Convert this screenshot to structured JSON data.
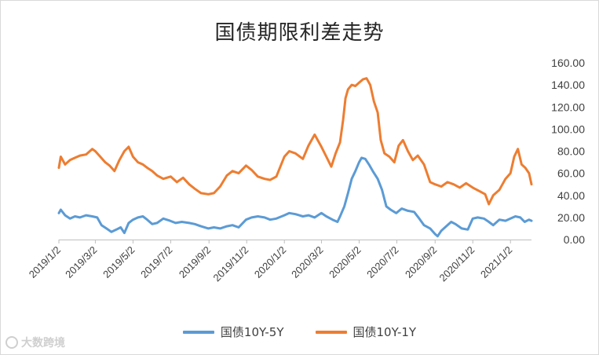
{
  "chart_data": {
    "type": "line",
    "title": "国债期限利差走势",
    "xlabel": "",
    "ylabel": "",
    "ylim": [
      0,
      160
    ],
    "y_ticks": [
      "0.00",
      "20.00",
      "40.00",
      "60.00",
      "80.00",
      "100.00",
      "120.00",
      "140.00",
      "160.00"
    ],
    "x_ticks": [
      "2019/1/2",
      "2019/3/2",
      "2019/5/2",
      "2019/7/2",
      "2019/9/2",
      "2019/11/2",
      "2020/1/2",
      "2020/3/2",
      "2020/5/2",
      "2020/7/2",
      "2020/9/2",
      "2020/11/2",
      "2021/1/2"
    ],
    "x_range": [
      "2019/1/2",
      "2021/2/5"
    ],
    "grid": false,
    "legend_position": "bottom",
    "series": [
      {
        "name": "国债10Y-5Y",
        "color": "#5b9bd5",
        "points": [
          [
            "2019/1/2",
            24
          ],
          [
            "2019/1/5",
            27
          ],
          [
            "2019/1/12",
            22
          ],
          [
            "2019/1/20",
            19
          ],
          [
            "2019/1/28",
            21
          ],
          [
            "2019/2/5",
            20
          ],
          [
            "2019/2/15",
            22
          ],
          [
            "2019/2/25",
            21
          ],
          [
            "2019/3/5",
            20
          ],
          [
            "2019/3/12",
            13
          ],
          [
            "2019/3/20",
            10
          ],
          [
            "2019/3/28",
            7
          ],
          [
            "2019/4/5",
            9
          ],
          [
            "2019/4/12",
            11
          ],
          [
            "2019/4/18",
            6
          ],
          [
            "2019/4/25",
            15
          ],
          [
            "2019/5/2",
            18
          ],
          [
            "2019/5/10",
            20
          ],
          [
            "2019/5/18",
            21
          ],
          [
            "2019/5/25",
            18
          ],
          [
            "2019/6/2",
            14
          ],
          [
            "2019/6/10",
            15
          ],
          [
            "2019/6/20",
            19
          ],
          [
            "2019/7/1",
            17
          ],
          [
            "2019/7/10",
            15
          ],
          [
            "2019/7/20",
            16
          ],
          [
            "2019/8/1",
            15
          ],
          [
            "2019/8/10",
            14
          ],
          [
            "2019/8/20",
            12
          ],
          [
            "2019/9/1",
            10
          ],
          [
            "2019/9/10",
            11
          ],
          [
            "2019/9/20",
            10
          ],
          [
            "2019/10/1",
            12
          ],
          [
            "2019/10/10",
            13
          ],
          [
            "2019/10/20",
            11
          ],
          [
            "2019/11/1",
            18
          ],
          [
            "2019/11/10",
            20
          ],
          [
            "2019/11/20",
            21
          ],
          [
            "2019/12/1",
            20
          ],
          [
            "2019/12/10",
            18
          ],
          [
            "2019/12/20",
            19
          ],
          [
            "2020/1/2",
            22
          ],
          [
            "2020/1/10",
            24
          ],
          [
            "2020/1/20",
            23
          ],
          [
            "2020/2/1",
            21
          ],
          [
            "2020/2/10",
            22
          ],
          [
            "2020/2/20",
            20
          ],
          [
            "2020/3/2",
            24
          ],
          [
            "2020/3/10",
            21
          ],
          [
            "2020/3/20",
            18
          ],
          [
            "2020/3/28",
            16
          ],
          [
            "2020/4/2",
            22
          ],
          [
            "2020/4/8",
            30
          ],
          [
            "2020/4/14",
            42
          ],
          [
            "2020/4/20",
            55
          ],
          [
            "2020/4/26",
            62
          ],
          [
            "2020/5/2",
            70
          ],
          [
            "2020/5/6",
            74
          ],
          [
            "2020/5/12",
            73
          ],
          [
            "2020/5/18",
            68
          ],
          [
            "2020/5/24",
            62
          ],
          [
            "2020/6/1",
            55
          ],
          [
            "2020/6/8",
            45
          ],
          [
            "2020/6/15",
            30
          ],
          [
            "2020/6/22",
            27
          ],
          [
            "2020/7/1",
            24
          ],
          [
            "2020/7/10",
            28
          ],
          [
            "2020/7/20",
            26
          ],
          [
            "2020/7/30",
            25
          ],
          [
            "2020/8/6",
            20
          ],
          [
            "2020/8/15",
            13
          ],
          [
            "2020/8/25",
            10
          ],
          [
            "2020/9/2",
            5
          ],
          [
            "2020/9/6",
            3
          ],
          [
            "2020/9/12",
            8
          ],
          [
            "2020/9/20",
            12
          ],
          [
            "2020/9/28",
            16
          ],
          [
            "2020/10/5",
            14
          ],
          [
            "2020/10/15",
            10
          ],
          [
            "2020/10/25",
            9
          ],
          [
            "2020/11/2",
            19
          ],
          [
            "2020/11/10",
            20
          ],
          [
            "2020/11/20",
            19
          ],
          [
            "2020/11/28",
            16
          ],
          [
            "2020/12/5",
            13
          ],
          [
            "2020/12/15",
            18
          ],
          [
            "2020/12/25",
            17
          ],
          [
            "2021/1/2",
            19
          ],
          [
            "2021/1/10",
            21
          ],
          [
            "2021/1/18",
            20
          ],
          [
            "2021/1/25",
            16
          ],
          [
            "2021/2/1",
            18
          ],
          [
            "2021/2/5",
            17
          ]
        ]
      },
      {
        "name": "国债10Y-1Y",
        "color": "#ed7d31",
        "points": [
          [
            "2019/1/2",
            65
          ],
          [
            "2019/1/5",
            75
          ],
          [
            "2019/1/12",
            68
          ],
          [
            "2019/1/20",
            72
          ],
          [
            "2019/1/28",
            74
          ],
          [
            "2019/2/5",
            76
          ],
          [
            "2019/2/15",
            77
          ],
          [
            "2019/2/25",
            82
          ],
          [
            "2019/3/2",
            80
          ],
          [
            "2019/3/10",
            75
          ],
          [
            "2019/3/18",
            70
          ],
          [
            "2019/3/25",
            67
          ],
          [
            "2019/4/2",
            62
          ],
          [
            "2019/4/10",
            72
          ],
          [
            "2019/4/18",
            80
          ],
          [
            "2019/4/25",
            84
          ],
          [
            "2019/5/2",
            75
          ],
          [
            "2019/5/10",
            70
          ],
          [
            "2019/5/18",
            68
          ],
          [
            "2019/5/25",
            65
          ],
          [
            "2019/6/2",
            62
          ],
          [
            "2019/6/10",
            58
          ],
          [
            "2019/6/20",
            55
          ],
          [
            "2019/7/2",
            57
          ],
          [
            "2019/7/12",
            52
          ],
          [
            "2019/7/22",
            56
          ],
          [
            "2019/8/1",
            50
          ],
          [
            "2019/8/10",
            46
          ],
          [
            "2019/8/20",
            42
          ],
          [
            "2019/9/1",
            41
          ],
          [
            "2019/9/10",
            42
          ],
          [
            "2019/9/20",
            48
          ],
          [
            "2019/10/1",
            58
          ],
          [
            "2019/10/10",
            62
          ],
          [
            "2019/10/20",
            60
          ],
          [
            "2019/11/1",
            67
          ],
          [
            "2019/11/10",
            63
          ],
          [
            "2019/11/20",
            57
          ],
          [
            "2019/12/1",
            55
          ],
          [
            "2019/12/10",
            54
          ],
          [
            "2019/12/20",
            57
          ],
          [
            "2020/1/2",
            75
          ],
          [
            "2020/1/10",
            80
          ],
          [
            "2020/1/20",
            78
          ],
          [
            "2020/2/1",
            73
          ],
          [
            "2020/2/10",
            85
          ],
          [
            "2020/2/20",
            95
          ],
          [
            "2020/3/2",
            84
          ],
          [
            "2020/3/10",
            75
          ],
          [
            "2020/3/18",
            66
          ],
          [
            "2020/3/25",
            78
          ],
          [
            "2020/4/1",
            88
          ],
          [
            "2020/4/6",
            108
          ],
          [
            "2020/4/10",
            128
          ],
          [
            "2020/4/14",
            136
          ],
          [
            "2020/4/20",
            140
          ],
          [
            "2020/4/26",
            139
          ],
          [
            "2020/5/2",
            142
          ],
          [
            "2020/5/8",
            145
          ],
          [
            "2020/5/14",
            146
          ],
          [
            "2020/5/20",
            140
          ],
          [
            "2020/5/26",
            125
          ],
          [
            "2020/6/1",
            115
          ],
          [
            "2020/6/6",
            90
          ],
          [
            "2020/6/12",
            78
          ],
          [
            "2020/6/20",
            75
          ],
          [
            "2020/6/28",
            70
          ],
          [
            "2020/7/5",
            85
          ],
          [
            "2020/7/12",
            90
          ],
          [
            "2020/7/20",
            80
          ],
          [
            "2020/7/28",
            72
          ],
          [
            "2020/8/5",
            76
          ],
          [
            "2020/8/15",
            68
          ],
          [
            "2020/8/25",
            52
          ],
          [
            "2020/9/2",
            50
          ],
          [
            "2020/9/12",
            48
          ],
          [
            "2020/9/22",
            52
          ],
          [
            "2020/10/2",
            50
          ],
          [
            "2020/10/12",
            47
          ],
          [
            "2020/10/22",
            51
          ],
          [
            "2020/11/2",
            47
          ],
          [
            "2020/11/12",
            44
          ],
          [
            "2020/11/22",
            41
          ],
          [
            "2020/11/28",
            32
          ],
          [
            "2020/12/5",
            40
          ],
          [
            "2020/12/15",
            45
          ],
          [
            "2020/12/25",
            55
          ],
          [
            "2021/1/2",
            60
          ],
          [
            "2021/1/8",
            75
          ],
          [
            "2021/1/14",
            82
          ],
          [
            "2021/1/20",
            68
          ],
          [
            "2021/1/26",
            65
          ],
          [
            "2021/2/1",
            60
          ],
          [
            "2021/2/5",
            50
          ]
        ]
      }
    ]
  },
  "watermark": {
    "text": "大数跨境"
  }
}
